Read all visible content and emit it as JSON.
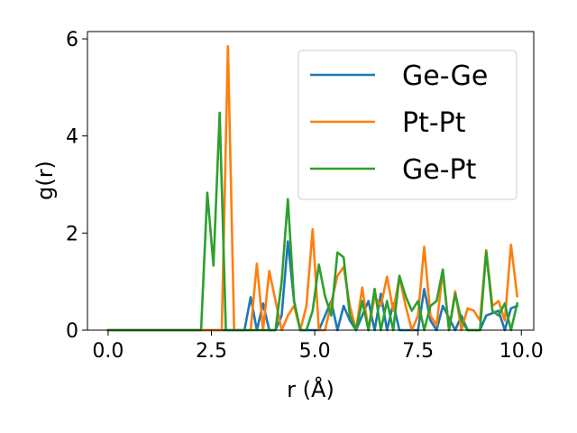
{
  "chart_data": {
    "type": "line",
    "xlabel": "r (Å)",
    "ylabel": "g(r)",
    "xlim": [
      -0.5,
      10.3
    ],
    "ylim": [
      0,
      6.15
    ],
    "xticks": [
      0.0,
      2.5,
      5.0,
      7.5,
      10.0
    ],
    "xtick_labels": [
      "0.0",
      "2.5",
      "5.0",
      "7.5",
      "10.0"
    ],
    "yticks": [
      0,
      2,
      4,
      6
    ],
    "ytick_labels": [
      "0",
      "2",
      "4",
      "6"
    ],
    "grid": false,
    "legend_position": "top-right",
    "series": [
      {
        "name": "Ge-Ge",
        "color": "#1f77b4",
        "x": [
          0.0,
          3.3,
          3.45,
          3.6,
          3.75,
          3.9,
          4.05,
          4.2,
          4.35,
          4.5,
          4.65,
          5.1,
          5.25,
          5.4,
          5.55,
          5.7,
          5.85,
          6.0,
          6.3,
          6.45,
          6.6,
          6.75,
          6.9,
          7.05,
          7.2,
          7.5,
          7.65,
          7.8,
          7.95,
          8.1,
          8.4,
          8.55,
          8.7,
          9.0,
          9.15,
          9.3,
          9.45,
          9.6,
          9.75,
          9.9
        ],
        "y": [
          0,
          0,
          0.68,
          0,
          0.55,
          0,
          0,
          0.3,
          1.83,
          0.6,
          0,
          0,
          0.3,
          0.6,
          0,
          0.5,
          0.2,
          0,
          0.6,
          0,
          0.75,
          0,
          0.55,
          0,
          0,
          0,
          0.85,
          0.2,
          0,
          0.5,
          0,
          0.3,
          0,
          0,
          0.3,
          0.35,
          0.4,
          0,
          0.45,
          0.5
        ]
      },
      {
        "name": "Pt-Pt",
        "color": "#ff7f0e",
        "x": [
          0.0,
          2.75,
          2.9,
          3.05,
          3.45,
          3.6,
          3.75,
          3.9,
          4.2,
          4.35,
          4.5,
          4.65,
          4.8,
          4.95,
          5.1,
          5.25,
          5.55,
          5.7,
          5.85,
          6.0,
          6.15,
          6.3,
          6.45,
          6.6,
          6.75,
          6.9,
          7.05,
          7.2,
          7.35,
          7.5,
          7.65,
          7.8,
          7.95,
          8.1,
          8.25,
          8.4,
          8.55,
          8.7,
          8.85,
          9.0,
          9.15,
          9.3,
          9.45,
          9.6,
          9.75,
          9.9
        ],
        "y": [
          0,
          0,
          5.85,
          0,
          0,
          1.37,
          0,
          1.22,
          0,
          0.3,
          0.5,
          0,
          0.5,
          2.08,
          0,
          0,
          1.12,
          1.3,
          0.5,
          0,
          0.88,
          0,
          0.7,
          0.5,
          1.1,
          0.4,
          1.1,
          0.5,
          0,
          0.3,
          1.72,
          0.3,
          0.1,
          1.22,
          0,
          0.8,
          0,
          0.45,
          0.4,
          0.2,
          1.65,
          0.5,
          0.6,
          0.2,
          1.76,
          0.7
        ]
      },
      {
        "name": "Ge-Pt",
        "color": "#2ca02c",
        "x": [
          0.0,
          2.25,
          2.4,
          2.55,
          2.7,
          2.85,
          3.0,
          3.15,
          4.05,
          4.2,
          4.35,
          4.5,
          4.65,
          4.8,
          4.95,
          5.1,
          5.25,
          5.4,
          5.55,
          5.7,
          5.85,
          6.0,
          6.15,
          6.3,
          6.45,
          6.6,
          6.75,
          6.9,
          7.05,
          7.2,
          7.35,
          7.5,
          7.65,
          7.8,
          7.95,
          8.1,
          8.25,
          8.4,
          8.55,
          8.7,
          8.85,
          9.0,
          9.15,
          9.3,
          9.45,
          9.6,
          9.75,
          9.9
        ],
        "y": [
          0,
          0,
          2.83,
          1.33,
          4.48,
          0,
          0,
          0,
          0,
          1.0,
          2.7,
          0.6,
          0,
          0,
          0.4,
          1.35,
          0.7,
          0.3,
          1.6,
          1.5,
          0.3,
          0,
          0.6,
          0,
          0.85,
          0,
          0.6,
          0,
          1.12,
          0.7,
          0.4,
          0.6,
          0,
          0.5,
          0.6,
          1.25,
          0,
          0.75,
          0.2,
          0,
          0,
          0,
          1.62,
          0.4,
          0.3,
          0.55,
          0,
          0.55
        ]
      }
    ]
  }
}
